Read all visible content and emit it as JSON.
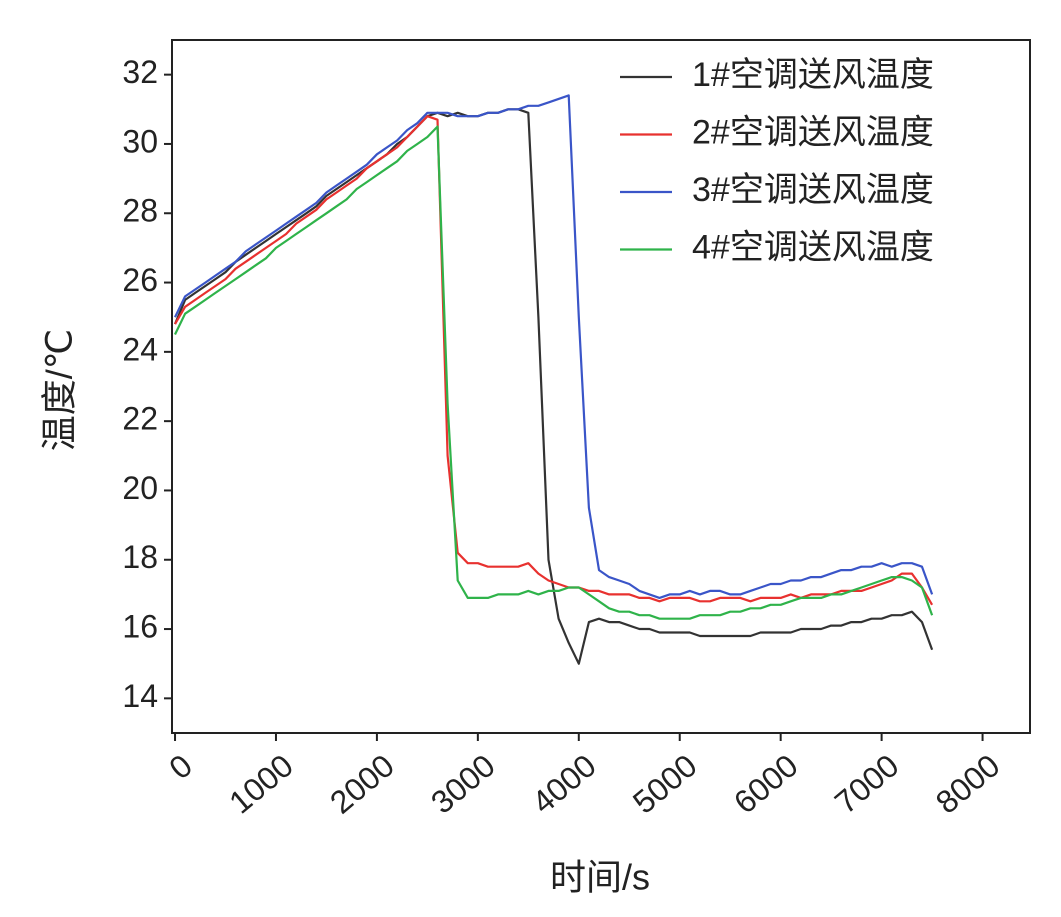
{
  "chart_data": {
    "type": "line",
    "x_label": "时间/s",
    "y_label": "温度/℃",
    "x": [
      0,
      100,
      200,
      300,
      400,
      500,
      600,
      700,
      800,
      900,
      1000,
      1100,
      1200,
      1300,
      1400,
      1500,
      1600,
      1700,
      1800,
      1900,
      2000,
      2100,
      2200,
      2300,
      2400,
      2500,
      2600,
      2700,
      2800,
      2900,
      3000,
      3100,
      3200,
      3300,
      3400,
      3500,
      3600,
      3700,
      3800,
      3900,
      4000,
      4100,
      4200,
      4300,
      4400,
      4500,
      4600,
      4700,
      4800,
      4900,
      5000,
      5100,
      5200,
      5300,
      5400,
      5500,
      5600,
      5700,
      5800,
      5900,
      6000,
      6100,
      6200,
      6300,
      6400,
      6500,
      6600,
      6700,
      6800,
      6900,
      7000,
      7100,
      7200,
      7300,
      7400,
      7500
    ],
    "series": [
      {
        "name": "1#空调送风温度",
        "color": "#333333",
        "values": [
          24.8,
          25.5,
          25.7,
          25.9,
          26.1,
          26.3,
          26.6,
          26.8,
          27.0,
          27.2,
          27.4,
          27.6,
          27.8,
          28.0,
          28.2,
          28.5,
          28.7,
          28.9,
          29.1,
          29.3,
          29.5,
          29.7,
          30.0,
          30.2,
          30.5,
          30.8,
          30.9,
          30.8,
          30.9,
          30.8,
          30.8,
          30.9,
          30.9,
          31.0,
          31.0,
          30.9,
          25.0,
          18.0,
          16.3,
          15.6,
          15.0,
          16.2,
          16.3,
          16.2,
          16.2,
          16.1,
          16.0,
          16.0,
          15.9,
          15.9,
          15.9,
          15.9,
          15.8,
          15.8,
          15.8,
          15.8,
          15.8,
          15.8,
          15.9,
          15.9,
          15.9,
          15.9,
          16.0,
          16.0,
          16.0,
          16.1,
          16.1,
          16.2,
          16.2,
          16.3,
          16.3,
          16.4,
          16.4,
          16.5,
          16.2,
          15.4
        ]
      },
      {
        "name": "2#空调送风温度",
        "color": "#e8312f",
        "values": [
          24.8,
          25.3,
          25.5,
          25.7,
          25.9,
          26.1,
          26.4,
          26.6,
          26.8,
          27.0,
          27.2,
          27.4,
          27.7,
          27.9,
          28.1,
          28.4,
          28.6,
          28.8,
          29.0,
          29.3,
          29.5,
          29.7,
          29.9,
          30.2,
          30.5,
          30.8,
          30.7,
          21.0,
          18.2,
          17.9,
          17.9,
          17.8,
          17.8,
          17.8,
          17.8,
          17.9,
          17.6,
          17.4,
          17.3,
          17.2,
          17.2,
          17.1,
          17.1,
          17.0,
          17.0,
          17.0,
          16.9,
          16.9,
          16.8,
          16.9,
          16.9,
          16.9,
          16.8,
          16.8,
          16.9,
          16.9,
          16.9,
          16.8,
          16.9,
          16.9,
          16.9,
          17.0,
          16.9,
          17.0,
          17.0,
          17.0,
          17.1,
          17.1,
          17.1,
          17.2,
          17.3,
          17.4,
          17.6,
          17.6,
          17.2,
          16.7
        ]
      },
      {
        "name": "3#空调送风温度",
        "color": "#3a55c8",
        "values": [
          25.0,
          25.6,
          25.8,
          26.0,
          26.2,
          26.4,
          26.6,
          26.9,
          27.1,
          27.3,
          27.5,
          27.7,
          27.9,
          28.1,
          28.3,
          28.6,
          28.8,
          29.0,
          29.2,
          29.4,
          29.7,
          29.9,
          30.1,
          30.4,
          30.6,
          30.9,
          30.9,
          30.9,
          30.8,
          30.8,
          30.8,
          30.9,
          30.9,
          31.0,
          31.0,
          31.1,
          31.1,
          31.2,
          31.3,
          31.4,
          25.0,
          19.5,
          17.7,
          17.5,
          17.4,
          17.3,
          17.1,
          17.0,
          16.9,
          17.0,
          17.0,
          17.1,
          17.0,
          17.1,
          17.1,
          17.0,
          17.0,
          17.1,
          17.2,
          17.3,
          17.3,
          17.4,
          17.4,
          17.5,
          17.5,
          17.6,
          17.7,
          17.7,
          17.8,
          17.8,
          17.9,
          17.8,
          17.9,
          17.9,
          17.8,
          17.0
        ]
      },
      {
        "name": "4#空调送风温度",
        "color": "#2fb34a",
        "values": [
          24.5,
          25.1,
          25.3,
          25.5,
          25.7,
          25.9,
          26.1,
          26.3,
          26.5,
          26.7,
          27.0,
          27.2,
          27.4,
          27.6,
          27.8,
          28.0,
          28.2,
          28.4,
          28.7,
          28.9,
          29.1,
          29.3,
          29.5,
          29.8,
          30.0,
          30.2,
          30.5,
          22.5,
          17.4,
          16.9,
          16.9,
          16.9,
          17.0,
          17.0,
          17.0,
          17.1,
          17.0,
          17.1,
          17.1,
          17.2,
          17.2,
          17.0,
          16.8,
          16.6,
          16.5,
          16.5,
          16.4,
          16.4,
          16.3,
          16.3,
          16.3,
          16.3,
          16.4,
          16.4,
          16.4,
          16.5,
          16.5,
          16.6,
          16.6,
          16.7,
          16.7,
          16.8,
          16.9,
          16.9,
          16.9,
          17.0,
          17.0,
          17.1,
          17.2,
          17.3,
          17.4,
          17.5,
          17.5,
          17.4,
          17.2,
          16.4
        ]
      }
    ],
    "xlim": [
      -30,
      8470
    ],
    "xticks": [
      0,
      1000,
      2000,
      3000,
      4000,
      5000,
      6000,
      7000,
      8000
    ],
    "ylim": [
      13,
      33
    ],
    "yticks": [
      14,
      16,
      18,
      20,
      22,
      24,
      26,
      28,
      30,
      32
    ],
    "legend": "upper right",
    "grid": false
  }
}
